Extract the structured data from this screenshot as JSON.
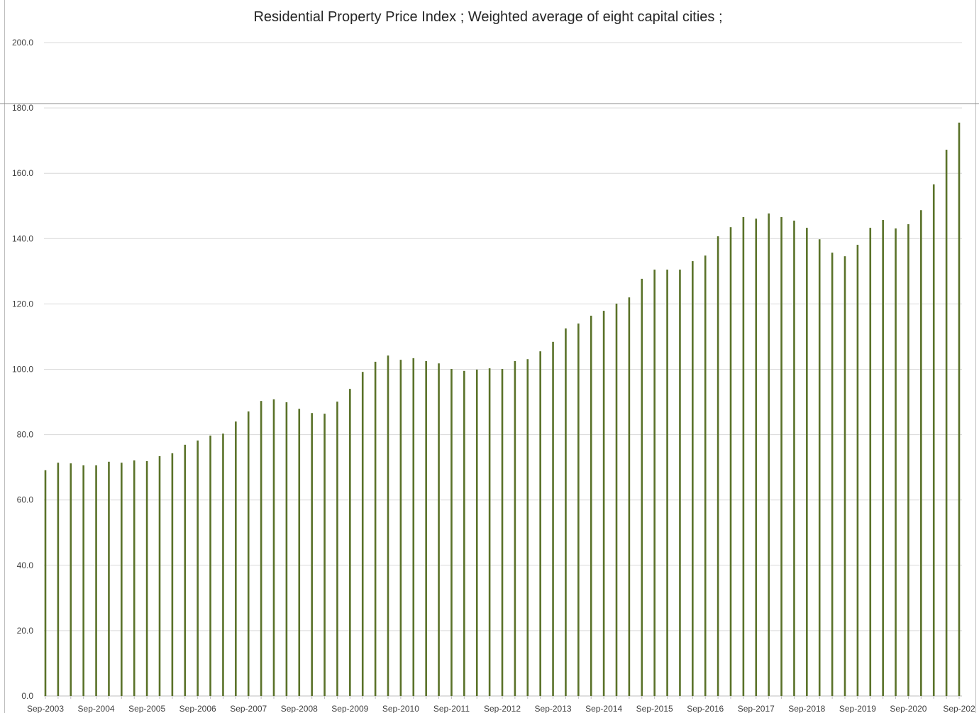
{
  "chart_data": {
    "type": "bar",
    "title": "Residential Property Price Index ;  Weighted average of eight capital cities ;",
    "xlabel": "",
    "ylabel": "",
    "ylim": [
      0,
      200
    ],
    "yticks": [
      "0.0",
      "20.0",
      "40.0",
      "60.0",
      "80.0",
      "100.0",
      "120.0",
      "140.0",
      "160.0",
      "180.0",
      "200.0"
    ],
    "grid": true,
    "bar_color": "#5a7229",
    "x_tick_labels": [
      "Sep-2003",
      "Sep-2004",
      "Sep-2005",
      "Sep-2006",
      "Sep-2007",
      "Sep-2008",
      "Sep-2009",
      "Sep-2010",
      "Sep-2011",
      "Sep-2012",
      "Sep-2013",
      "Sep-2014",
      "Sep-2015",
      "Sep-2016",
      "Sep-2017",
      "Sep-2018",
      "Sep-2019",
      "Sep-2020",
      "Sep-202"
    ],
    "categories_start": "Sep-2003",
    "frequency": "quarterly",
    "values": [
      69.1,
      71.4,
      71.2,
      70.6,
      70.6,
      71.7,
      71.4,
      72.1,
      71.9,
      73.4,
      74.3,
      76.9,
      78.2,
      79.7,
      80.3,
      84.0,
      87.1,
      90.3,
      90.8,
      89.9,
      87.9,
      86.6,
      86.4,
      90.1,
      94.0,
      99.2,
      102.3,
      104.2,
      102.9,
      103.4,
      102.5,
      101.8,
      100.1,
      99.5,
      99.9,
      100.3,
      100.1,
      102.5,
      103.1,
      105.5,
      108.4,
      112.5,
      114.0,
      116.4,
      117.9,
      120.1,
      122.0,
      127.7,
      130.5,
      130.5,
      130.5,
      133.1,
      134.8,
      140.7,
      143.5,
      146.6,
      146.1,
      147.7,
      146.6,
      145.5,
      143.3,
      139.8,
      135.7,
      134.6,
      138.1,
      143.3,
      145.7,
      143.1,
      144.4,
      148.7,
      156.6,
      167.2,
      175.5
    ]
  }
}
